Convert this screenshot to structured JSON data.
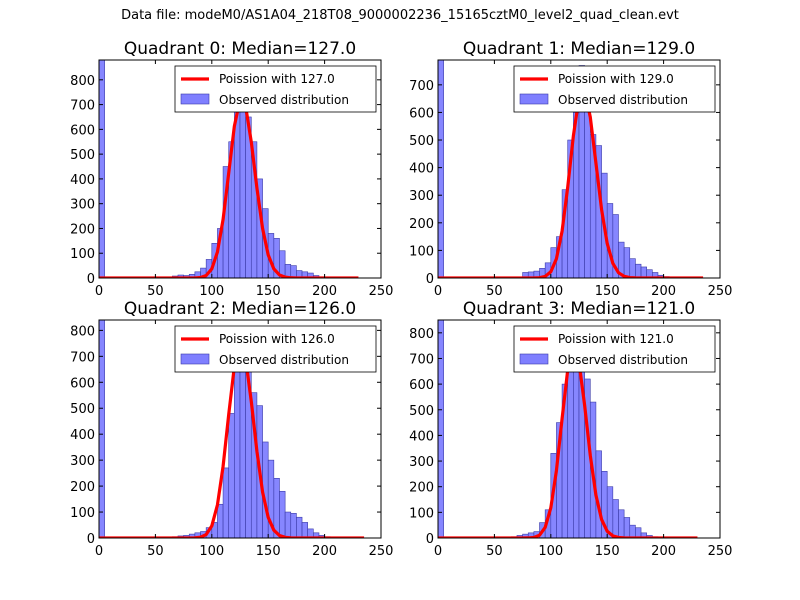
{
  "figure_title": "Data file: modeM0/AS1A04_218T08_9000002236_15165cztM0_level2_quad_clean.evt",
  "colors": {
    "poisson": "#ff0000",
    "observed": "#7f7fff",
    "observed_edge": "#3a3aa8",
    "axes": "#000000"
  },
  "chart_data": [
    {
      "type": "bar",
      "title": "Quadrant 0: Median=127.0",
      "median": 127.0,
      "xlim": [
        0,
        250
      ],
      "ylim": [
        0,
        880
      ],
      "x_ticks": [
        0,
        50,
        100,
        150,
        200,
        250
      ],
      "y_ticks": [
        0,
        100,
        200,
        300,
        400,
        500,
        600,
        700,
        800
      ],
      "legend": {
        "location": "top-right",
        "entries": [
          "Poission with 127.0",
          "Observed distribution"
        ]
      },
      "bin_width": 5,
      "bin_starts": [
        0,
        5,
        10,
        15,
        20,
        25,
        30,
        35,
        40,
        45,
        50,
        55,
        60,
        65,
        70,
        75,
        80,
        85,
        90,
        95,
        100,
        105,
        110,
        115,
        120,
        125,
        130,
        135,
        140,
        145,
        150,
        155,
        160,
        165,
        170,
        175,
        180,
        185,
        190,
        195,
        200,
        205,
        210,
        215,
        220,
        225
      ],
      "observed": [
        880,
        0,
        0,
        0,
        0,
        0,
        0,
        0,
        0,
        0,
        0,
        0,
        0,
        8,
        12,
        10,
        15,
        25,
        40,
        75,
        140,
        200,
        450,
        550,
        750,
        770,
        650,
        550,
        400,
        280,
        180,
        160,
        110,
        55,
        50,
        30,
        25,
        20,
        10,
        5,
        3,
        2,
        1,
        0,
        0,
        0
      ],
      "poisson": {
        "x_start": 0,
        "x_end": 230,
        "mean": 127.0,
        "total": 4100,
        "bin_width": 5
      }
    },
    {
      "type": "bar",
      "title": "Quadrant 1: Median=129.0",
      "median": 129.0,
      "xlim": [
        0,
        250
      ],
      "ylim": [
        0,
        790
      ],
      "x_ticks": [
        0,
        50,
        100,
        150,
        200,
        250
      ],
      "y_ticks": [
        0,
        100,
        200,
        300,
        400,
        500,
        600,
        700
      ],
      "legend": {
        "location": "top-right",
        "entries": [
          "Poission with 129.0",
          "Observed distribution"
        ]
      },
      "bin_width": 5,
      "bin_starts": [
        0,
        5,
        10,
        15,
        20,
        25,
        30,
        35,
        40,
        45,
        50,
        55,
        60,
        65,
        70,
        75,
        80,
        85,
        90,
        95,
        100,
        105,
        110,
        115,
        120,
        125,
        130,
        135,
        140,
        145,
        150,
        155,
        160,
        165,
        170,
        175,
        180,
        185,
        190,
        195,
        200,
        205,
        210,
        215,
        220,
        225,
        230
      ],
      "observed": [
        790,
        0,
        0,
        0,
        0,
        0,
        0,
        0,
        0,
        0,
        0,
        0,
        0,
        0,
        0,
        20,
        22,
        25,
        35,
        55,
        110,
        150,
        320,
        500,
        600,
        770,
        650,
        520,
        480,
        380,
        270,
        230,
        130,
        110,
        70,
        50,
        40,
        30,
        20,
        10,
        5,
        3,
        2,
        0,
        0,
        0,
        0
      ],
      "poisson": {
        "x_start": 0,
        "x_end": 235,
        "mean": 129.0,
        "total": 3900,
        "bin_width": 5
      }
    },
    {
      "type": "bar",
      "title": "Quadrant 2: Median=126.0",
      "median": 126.0,
      "xlim": [
        0,
        250
      ],
      "ylim": [
        0,
        840
      ],
      "x_ticks": [
        0,
        50,
        100,
        150,
        200,
        250
      ],
      "y_ticks": [
        0,
        100,
        200,
        300,
        400,
        500,
        600,
        700,
        800
      ],
      "legend": {
        "location": "top-right",
        "entries": [
          "Poission with 126.0",
          "Observed distribution"
        ]
      },
      "bin_width": 5,
      "bin_starts": [
        0,
        5,
        10,
        15,
        20,
        25,
        30,
        35,
        40,
        45,
        50,
        55,
        60,
        65,
        70,
        75,
        80,
        85,
        90,
        95,
        100,
        105,
        110,
        115,
        120,
        125,
        130,
        135,
        140,
        145,
        150,
        155,
        160,
        165,
        170,
        175,
        180,
        185,
        190,
        195,
        200,
        205,
        210,
        215,
        220,
        225,
        230
      ],
      "observed": [
        840,
        0,
        0,
        0,
        0,
        0,
        0,
        0,
        0,
        0,
        0,
        0,
        0,
        5,
        8,
        10,
        15,
        20,
        25,
        40,
        60,
        130,
        270,
        480,
        650,
        810,
        650,
        560,
        510,
        370,
        300,
        230,
        180,
        100,
        95,
        80,
        60,
        35,
        20,
        10,
        5,
        3,
        2,
        1,
        0,
        0,
        0
      ],
      "poisson": {
        "x_start": 0,
        "x_end": 235,
        "mean": 126.0,
        "total": 4200,
        "bin_width": 5
      }
    },
    {
      "type": "bar",
      "title": "Quadrant 3: Median=121.0",
      "median": 121.0,
      "xlim": [
        0,
        250
      ],
      "ylim": [
        0,
        850
      ],
      "x_ticks": [
        0,
        50,
        100,
        150,
        200,
        250
      ],
      "y_ticks": [
        0,
        100,
        200,
        300,
        400,
        500,
        600,
        700,
        800
      ],
      "legend": {
        "location": "top-right",
        "entries": [
          "Poission with 121.0",
          "Observed distribution"
        ]
      },
      "bin_width": 5,
      "bin_starts": [
        0,
        5,
        10,
        15,
        20,
        25,
        30,
        35,
        40,
        45,
        50,
        55,
        60,
        65,
        70,
        75,
        80,
        85,
        90,
        95,
        100,
        105,
        110,
        115,
        120,
        125,
        130,
        135,
        140,
        145,
        150,
        155,
        160,
        165,
        170,
        175,
        180,
        185,
        190,
        195,
        200,
        205,
        210,
        215,
        220,
        225,
        230
      ],
      "observed": [
        850,
        0,
        0,
        0,
        0,
        0,
        0,
        0,
        0,
        0,
        0,
        0,
        0,
        5,
        10,
        15,
        20,
        25,
        60,
        110,
        330,
        450,
        600,
        750,
        810,
        820,
        620,
        530,
        340,
        260,
        200,
        150,
        110,
        80,
        50,
        40,
        20,
        10,
        5,
        2,
        1,
        0,
        0,
        0,
        0,
        0,
        0
      ],
      "poisson": {
        "x_start": 0,
        "x_end": 232,
        "mean": 121.0,
        "total": 4100,
        "bin_width": 5
      }
    }
  ]
}
